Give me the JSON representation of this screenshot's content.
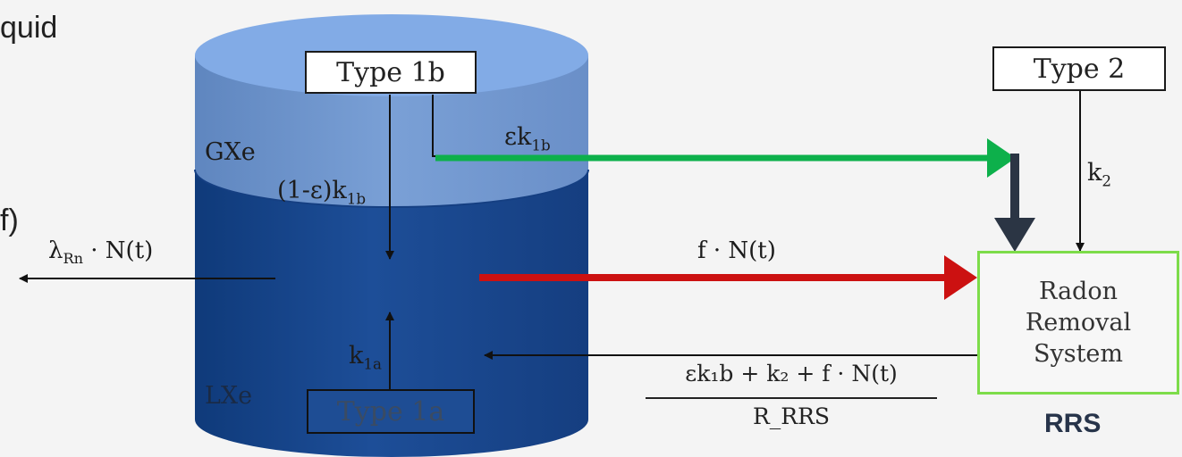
{
  "cut_text": {
    "top": "quid",
    "mid": "f)"
  },
  "tank": {
    "gas_label": "GXe",
    "liquid_label": "LXe"
  },
  "boxes": {
    "type_1b": "Type 1b",
    "type_1a": "Type 1a",
    "type_2": "Type 2"
  },
  "rrs": {
    "line1": "Radon",
    "line2": "Removal",
    "line3": "System",
    "tag": "RRS"
  },
  "labels": {
    "eps_k1b": {
      "main": "εk",
      "sub": "1b"
    },
    "one_minus_eps_k1b": {
      "main": "(1-ε)k",
      "sub": "1b"
    },
    "k1a": {
      "main": "k",
      "sub": "1a"
    },
    "k2": {
      "main": "k",
      "sub": "2"
    },
    "decay": {
      "main": "λ",
      "sub": "Rn",
      "rest": " · N(t)"
    },
    "f_flow": "f · N(t)",
    "return_numerator": "εk₁b + k₂ + f · N(t)",
    "return_denominator": "R_RRS"
  },
  "colors": {
    "green_arrow": "#0db04b",
    "red_arrow": "#cc1111",
    "dark_arrow": "#2b3544",
    "gas_top": "#7ea8e4",
    "gas_side": "#6f93c9",
    "liquid": "#1b4a92",
    "rrs_border": "#7ddc4a"
  }
}
